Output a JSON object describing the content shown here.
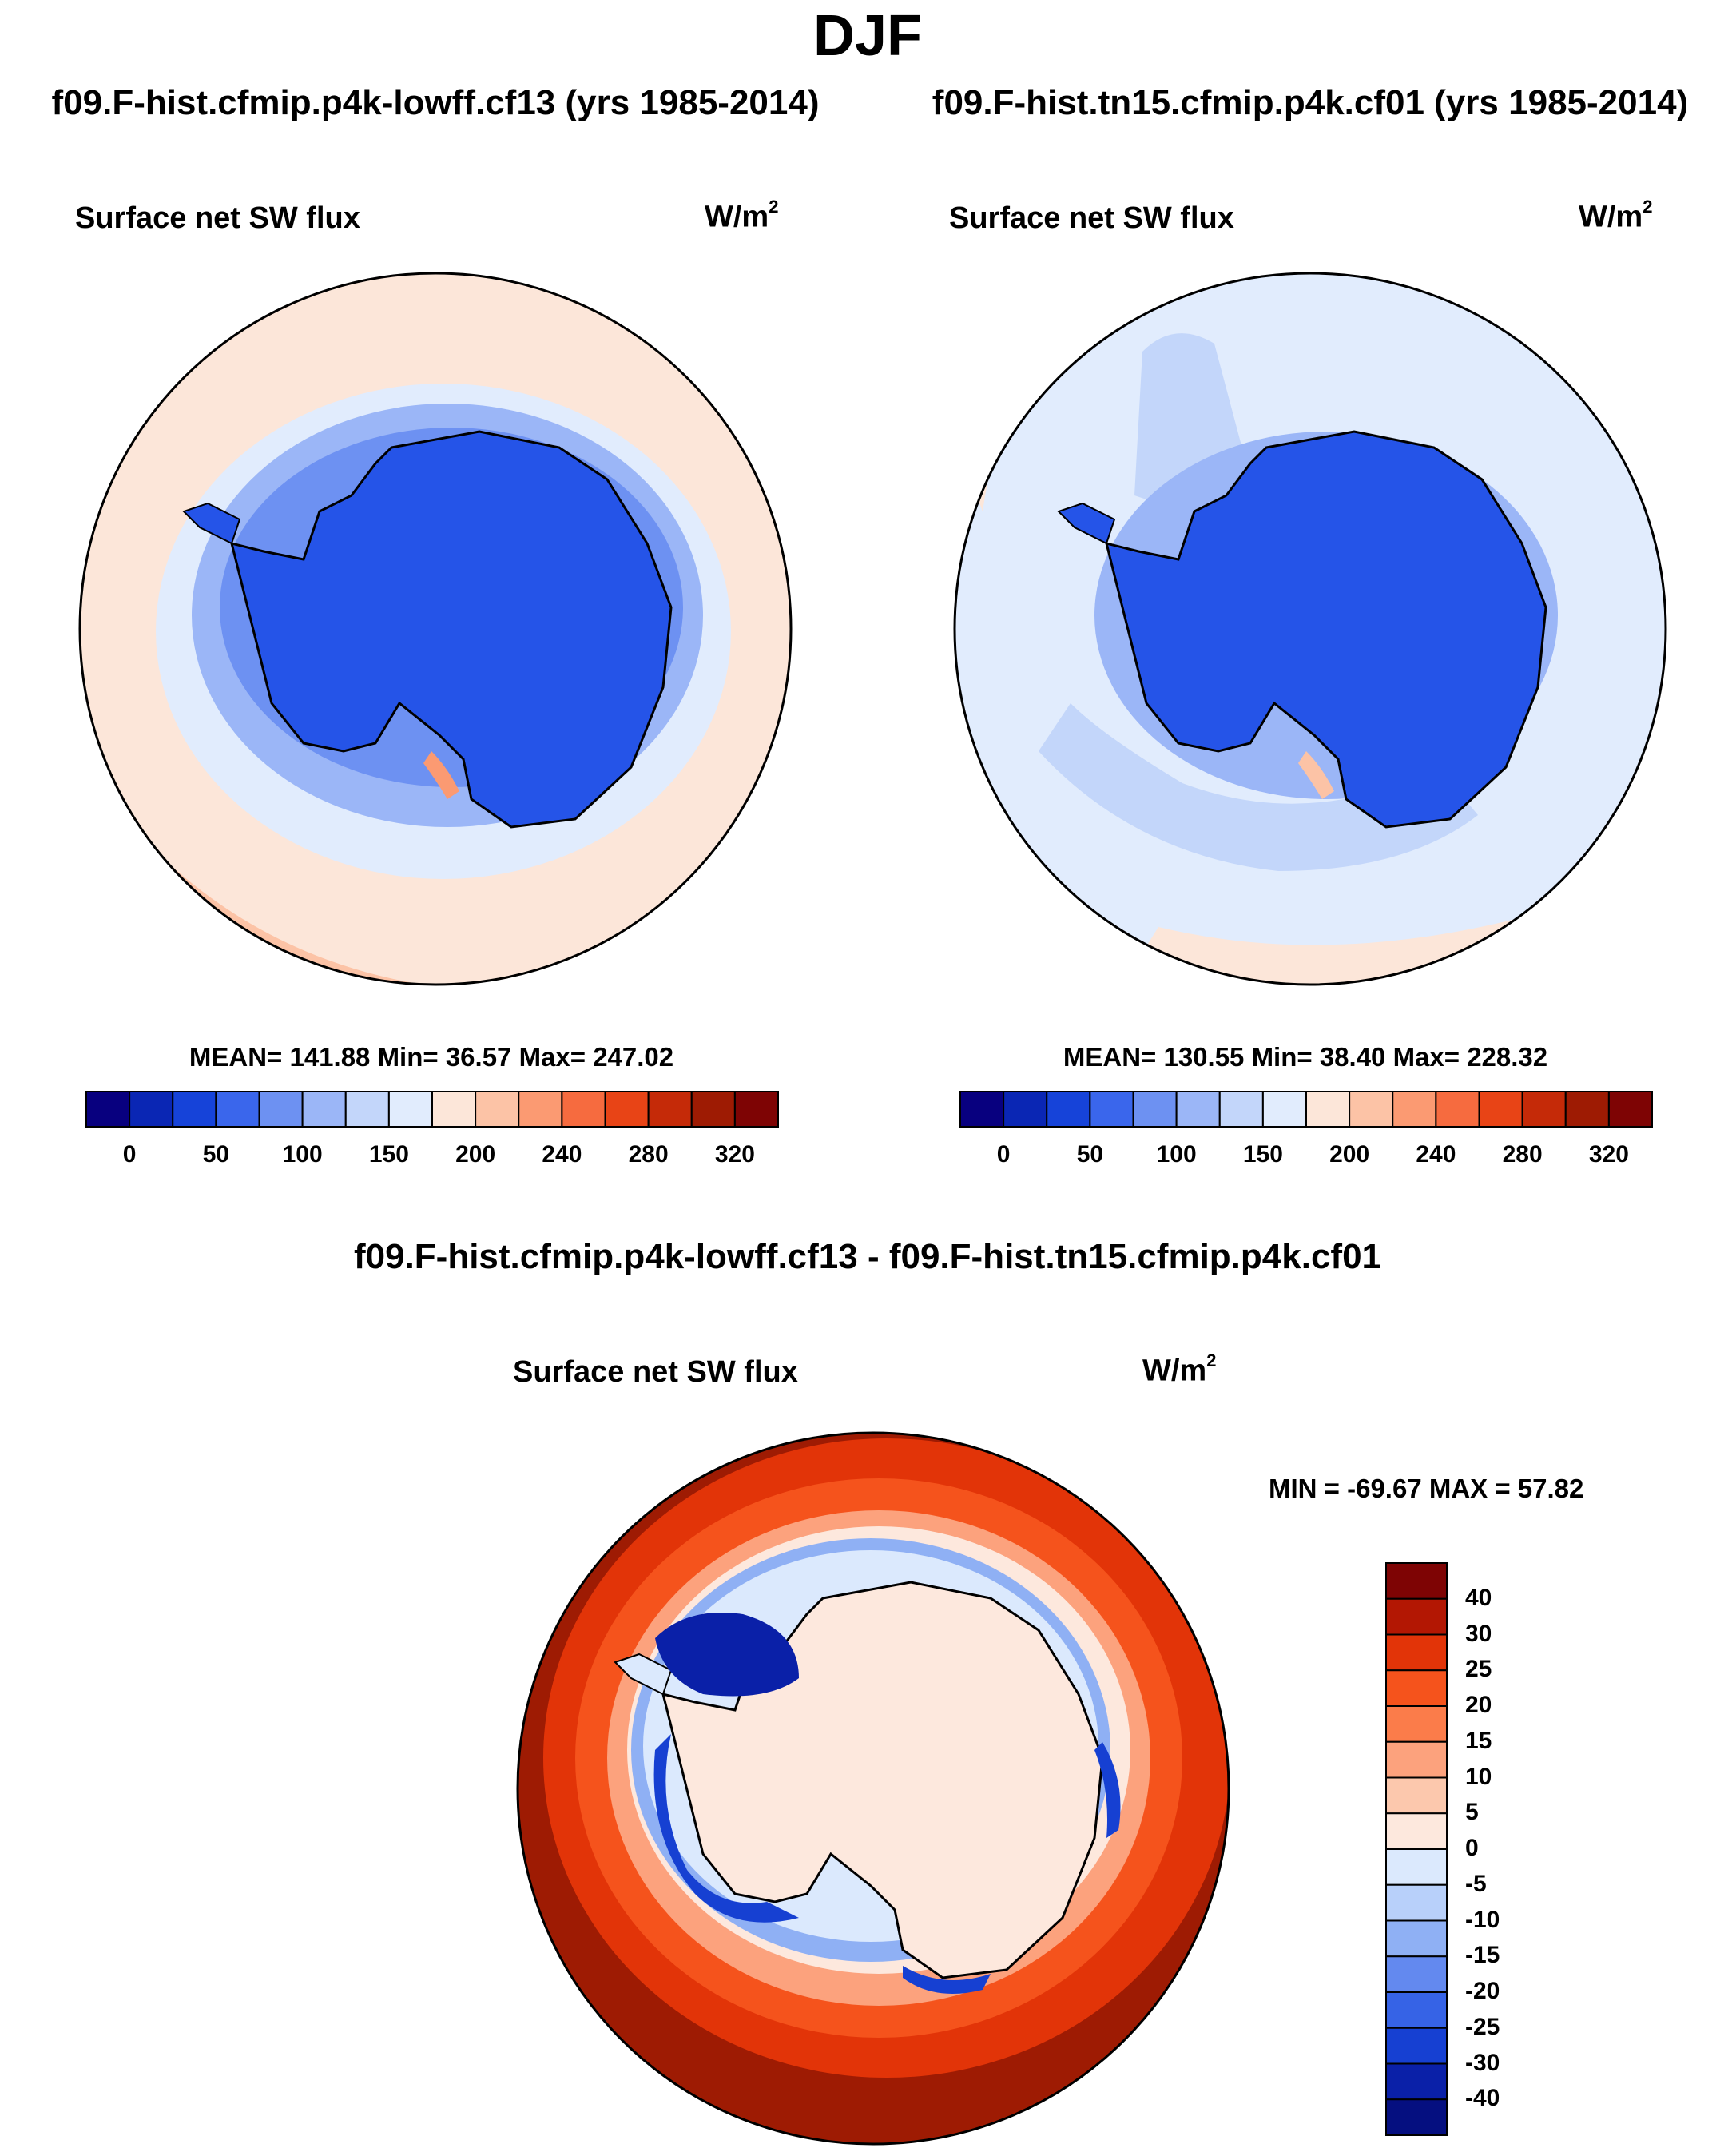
{
  "season": "DJF",
  "case_left": "f09.F-hist.cfmip.p4k-lowff.cf13 (yrs 1985-2014)",
  "case_right": "f09.F-hist.tn15.cfmip.p4k.cf01 (yrs 1985-2014)",
  "panels": {
    "left": {
      "title": "Surface net SW flux",
      "units_base": "W/m",
      "units_exp": "2",
      "stats": "MEAN= 141.88  Min=  36.57  Max= 247.02"
    },
    "right": {
      "title": "Surface net SW flux",
      "units_base": "W/m",
      "units_exp": "2",
      "stats": "MEAN= 130.55  Min=  38.40  Max= 228.32"
    },
    "diff": {
      "title": "f09.F-hist.cfmip.p4k-lowff.cf13 - f09.F-hist.tn15.cfmip.p4k.cf01",
      "panel_title": "Surface net SW flux",
      "units_base": "W/m",
      "units_exp": "2",
      "stats": "MIN = -69.67 MAX =  57.82"
    }
  },
  "colorbar_abs": {
    "colors": [
      "#08007f",
      "#0a26b4",
      "#1643d9",
      "#3a66ec",
      "#6d91f2",
      "#9bb6f7",
      "#c3d6fa",
      "#e1ecfd",
      "#fce6d9",
      "#fcc3a6",
      "#fb9a72",
      "#f66b3f",
      "#e84416",
      "#c52a08",
      "#9e1b03",
      "#7e0404"
    ],
    "labels": [
      "0",
      "50",
      "100",
      "150",
      "200",
      "240",
      "280",
      "320"
    ]
  },
  "colorbar_diff": {
    "colors": [
      "#7e0404",
      "#b31703",
      "#e23408",
      "#f5531c",
      "#fb7c4a",
      "#fca27d",
      "#fcc8ad",
      "#fde8dd",
      "#dbe9fd",
      "#b8d0fa",
      "#8fb0f4",
      "#6389ef",
      "#3663e6",
      "#1640d2",
      "#0a20a8",
      "#050f80"
    ],
    "labels": [
      "40",
      "30",
      "25",
      "20",
      "15",
      "10",
      "5",
      "0",
      "-5",
      "-10",
      "-15",
      "-20",
      "-25",
      "-30",
      "-40"
    ]
  }
}
